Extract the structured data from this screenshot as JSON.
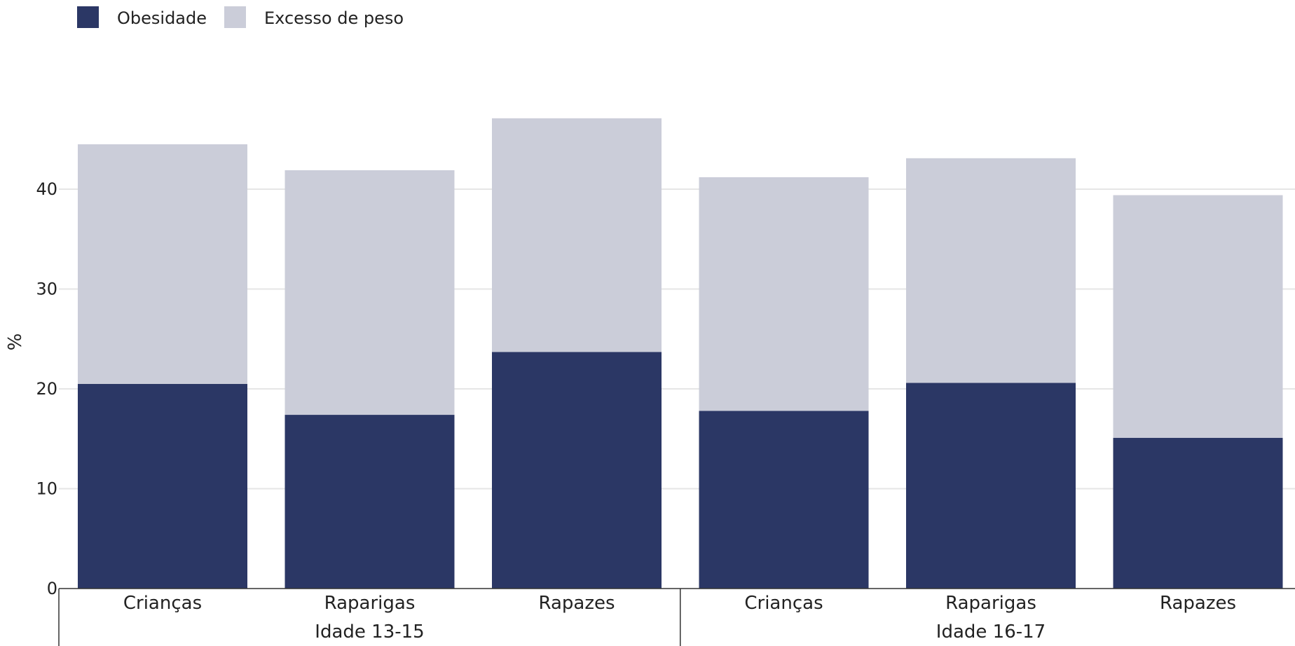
{
  "chart_data": {
    "type": "bar",
    "stacked": true,
    "groups": [
      {
        "label": "Idade 13-15",
        "categories": [
          "Crianças",
          "Raparigas",
          "Rapazes"
        ]
      },
      {
        "label": "Idade 16-17",
        "categories": [
          "Crianças",
          "Raparigas",
          "Rapazes"
        ]
      }
    ],
    "series": [
      {
        "name": "Obesidade",
        "color": "#2b3765",
        "values": [
          20.5,
          17.4,
          23.7,
          17.8,
          20.6,
          15.1
        ]
      },
      {
        "name": "Excesso de peso",
        "color": "#cbcdd9",
        "values": [
          24.0,
          24.5,
          23.4,
          23.4,
          22.5,
          24.3
        ]
      }
    ],
    "ylabel": "%",
    "ylim": [
      0,
      47.4
    ],
    "yticks": [
      0,
      10,
      20,
      30,
      40
    ],
    "grid": true,
    "legend_position": "top-left"
  }
}
